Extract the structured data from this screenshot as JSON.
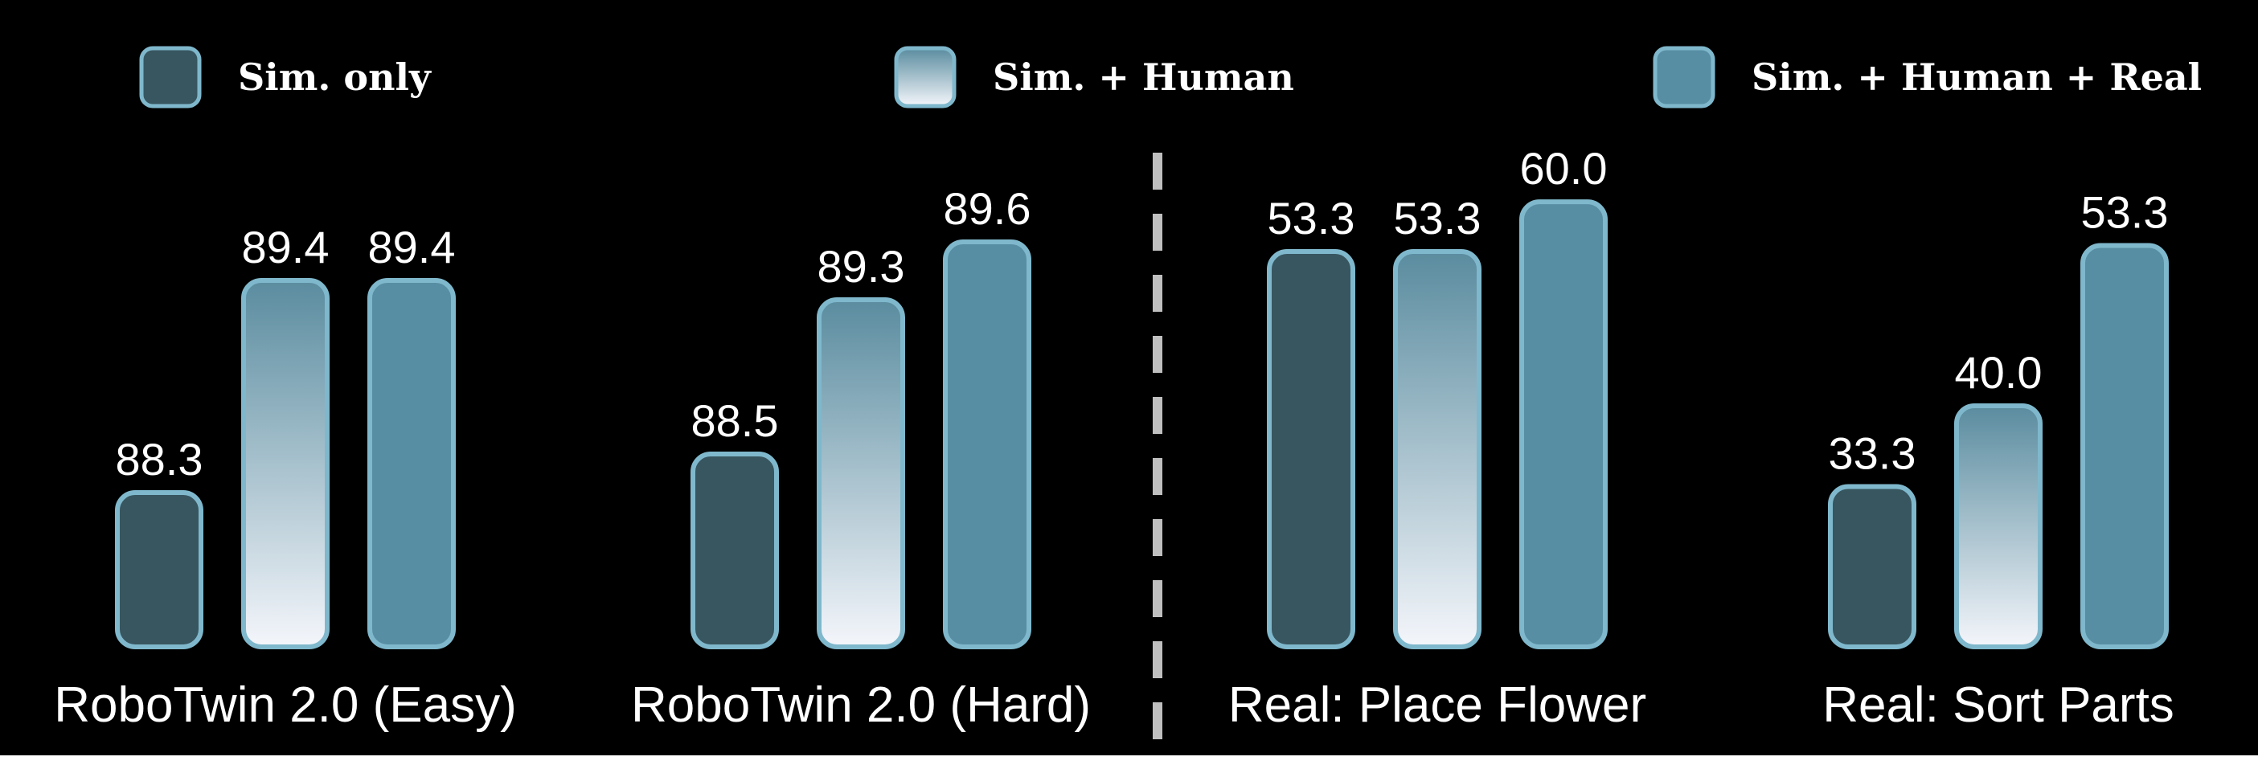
{
  "colors": {
    "background": "#000000",
    "sim_only": "#385660",
    "sim_human_top": "#5a8c9f",
    "sim_human_bottom": "#f4f6fb",
    "sim_human_real": "#588ea3",
    "bar_outline": "#7fb8cc",
    "divider": "#bfbfbf"
  },
  "chart_data": {
    "type": "bar",
    "categories": [
      "RoboTwin 2.0 (Easy)",
      "RoboTwin 2.0 (Hard)",
      "Real: Place Flower",
      "Real: Sort Parts"
    ],
    "series": [
      {
        "name": "Sim. only",
        "values": [
          88.3,
          88.5,
          53.3,
          33.3
        ],
        "value_labels": [
          "88.3",
          "88.5",
          "53.3",
          "33.3"
        ]
      },
      {
        "name": "Sim. + Human",
        "values": [
          89.4,
          89.3,
          53.3,
          40.0
        ],
        "value_labels": [
          "89.4",
          "89.3",
          "53.3",
          "40.0"
        ]
      },
      {
        "name": "Sim. + Human + Real",
        "values": [
          89.4,
          89.6,
          60.0,
          53.3
        ],
        "value_labels": [
          "89.4",
          "89.6",
          "60.0",
          "53.3"
        ]
      }
    ],
    "groups": [
      {
        "label": "RoboTwin 2.0 (Easy)",
        "ylim": [
          87.5,
          90.0
        ]
      },
      {
        "label": "RoboTwin 2.0 (Hard)",
        "ylim": [
          87.5,
          90.0
        ]
      },
      {
        "label": "Real: Place Flower",
        "ylim": [
          0,
          65
        ]
      },
      {
        "label": "Real: Sort Parts",
        "ylim": [
          20,
          60
        ]
      }
    ],
    "legend_position": "top",
    "divider_between": [
      "RoboTwin 2.0 (Hard)",
      "Real: Place Flower"
    ],
    "grid": false
  }
}
